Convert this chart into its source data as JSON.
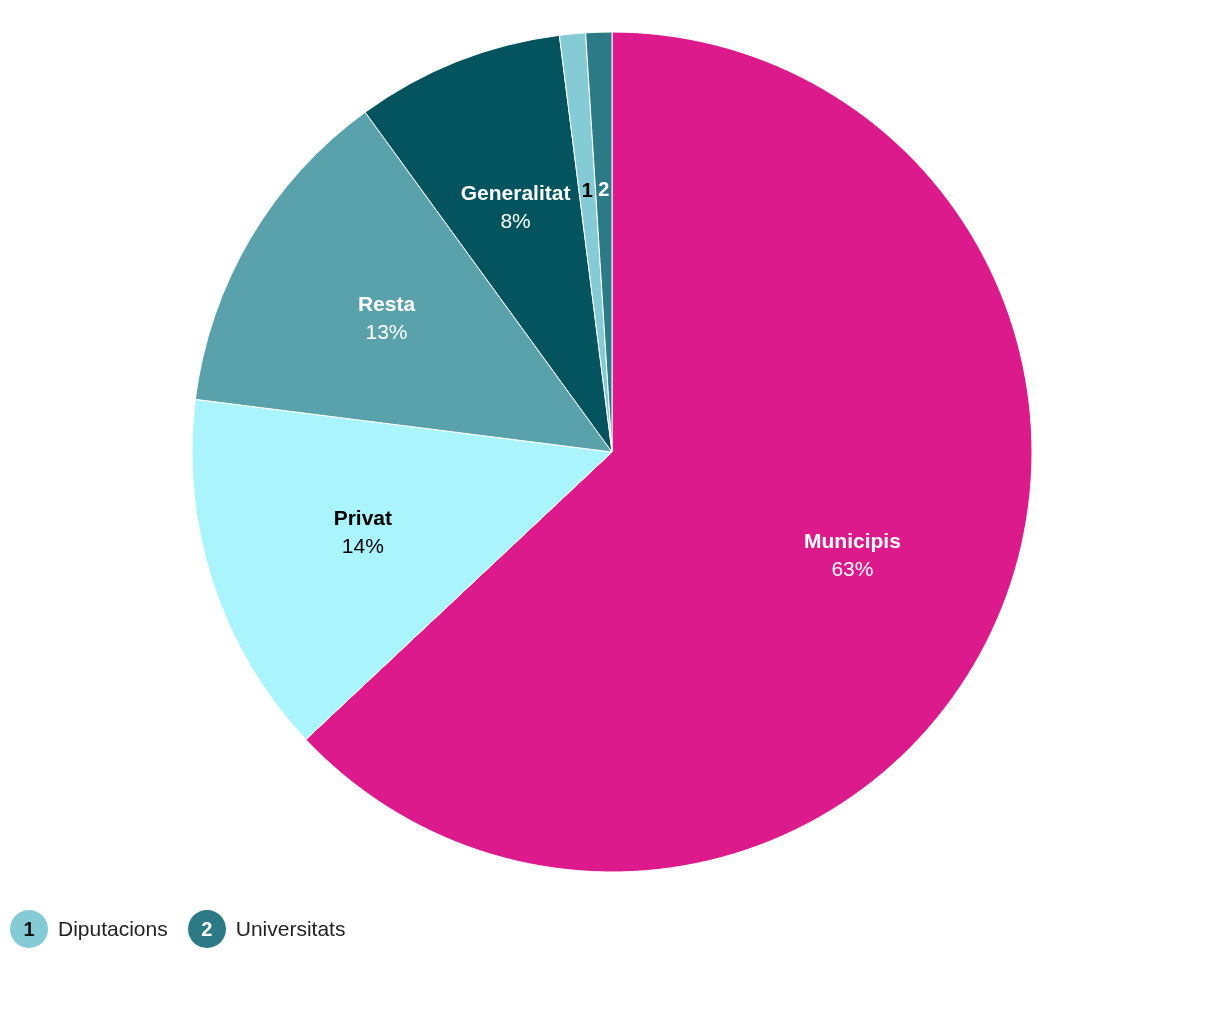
{
  "chart_data": {
    "type": "pie",
    "categories": [
      "Municipis",
      "Privat",
      "Resta",
      "Generalitat",
      "Diputacions",
      "Universitats"
    ],
    "values": [
      63,
      14,
      13,
      8,
      1,
      1
    ],
    "colors": [
      "#dc1a8c",
      "#aaf4fd",
      "#59a2ac",
      "#03545f",
      "#85cbd6",
      "#2c7a85"
    ],
    "value_labels": [
      "63%",
      "14%",
      "13%",
      "8%",
      null,
      null
    ],
    "annotations": [
      "1",
      "2"
    ],
    "legend": "bottom left"
  }
}
